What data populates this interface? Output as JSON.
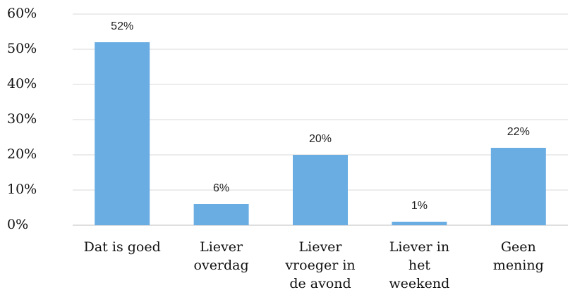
{
  "chart_data": {
    "type": "bar",
    "categories": [
      "Dat is goed",
      "Liever\noverdag",
      "Liever\nvroeger in\nde avond",
      "Liever in\nhet\nweekend",
      "Geen\nmening"
    ],
    "values": [
      52,
      6,
      20,
      1,
      22
    ],
    "value_labels": [
      "52%",
      "6%",
      "20%",
      "1%",
      "22%"
    ],
    "color": "#6aade2",
    "ylim": [
      0,
      60
    ],
    "yticks": [
      {
        "value": 0,
        "label": "0%"
      },
      {
        "value": 10,
        "label": "10%"
      },
      {
        "value": 20,
        "label": "20%"
      },
      {
        "value": 30,
        "label": "30%"
      },
      {
        "value": 40,
        "label": "40%"
      },
      {
        "value": 50,
        "label": "50%"
      },
      {
        "value": 60,
        "label": "60%"
      }
    ],
    "grid": true
  }
}
